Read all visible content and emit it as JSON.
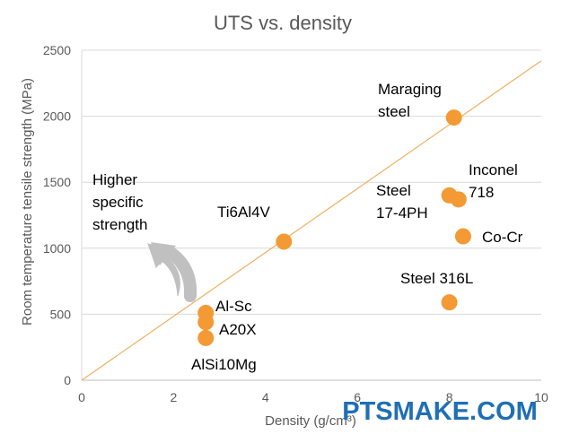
{
  "chart_data": {
    "type": "scatter",
    "title": "UTS vs. density",
    "xlabel": "Density (g/cm³)",
    "ylabel": "Room temperature tensile strength (MPa)",
    "xlim": [
      0,
      10
    ],
    "ylim": [
      0,
      2500
    ],
    "xticks": [
      "0",
      "2",
      "4",
      "6",
      "8",
      "10"
    ],
    "yticks": [
      "0",
      "500",
      "1000",
      "1500",
      "2000",
      "2500"
    ],
    "grid": "horizontal",
    "legend": "none",
    "marker_color": "#f39a34",
    "trendline": {
      "from": [
        0,
        0
      ],
      "to": [
        10,
        2420
      ],
      "color": "#f0b060"
    },
    "points": [
      {
        "label": "Maraging steel",
        "x": 8.1,
        "y": 1990
      },
      {
        "label": "Inconel 718",
        "x": 8.2,
        "y": 1370
      },
      {
        "label": "Steel 17-4PH",
        "x": 8.0,
        "y": 1400
      },
      {
        "label": "Co-Cr",
        "x": 8.3,
        "y": 1090
      },
      {
        "label": "Ti6Al4V",
        "x": 4.4,
        "y": 1050
      },
      {
        "label": "Steel 316L",
        "x": 8.0,
        "y": 590
      },
      {
        "label": "Al-Sc",
        "x": 2.7,
        "y": 510
      },
      {
        "label": "A20X",
        "x": 2.7,
        "y": 440
      },
      {
        "label": "AlSi10Mg",
        "x": 2.7,
        "y": 320
      }
    ],
    "annotations": [
      {
        "text": "Higher specific strength",
        "arrow_color": "#c0c0c0"
      }
    ]
  },
  "labels": {
    "maraging": [
      "Maraging",
      "steel"
    ],
    "inconel": [
      "Inconel",
      "718"
    ],
    "steel17": [
      "Steel",
      "17-4PH"
    ],
    "cocr": [
      "Co-Cr"
    ],
    "ti": [
      "Ti6Al4V"
    ],
    "steel316": [
      "Steel 316L"
    ],
    "alsc": [
      "Al-Sc"
    ],
    "a20x": [
      "A20X"
    ],
    "alsi": [
      "AlSi10Mg"
    ],
    "higher": [
      "Higher",
      "specific",
      "strength"
    ]
  },
  "watermark": "PTSMAKE.COM"
}
